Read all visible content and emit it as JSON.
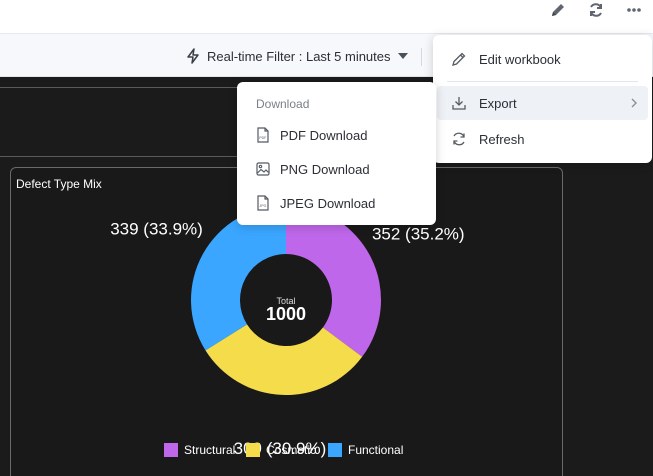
{
  "toolbar": {
    "edit_icon": "pencil-icon",
    "refresh_icon": "refresh-icon",
    "more_icon": "more-icon"
  },
  "filter": {
    "label": "Real-time Filter : Last 5 minutes"
  },
  "card": {
    "title": "Defect Type Mix"
  },
  "chart_data": {
    "type": "pie",
    "donut": true,
    "center_label": "Total",
    "center_value": "1000",
    "categories": [
      "Structural",
      "Cosmetic",
      "Functional"
    ],
    "values": [
      352,
      309,
      339
    ],
    "data_labels": [
      "352 (35.2%)",
      "309 (30.9%)",
      "339 (33.9%)"
    ],
    "colors": [
      "#bf67ea",
      "#f5dc4a",
      "#3aa6ff"
    ],
    "legend_position": "bottom"
  },
  "menu": {
    "edit": "Edit workbook",
    "export": "Export",
    "refresh": "Refresh"
  },
  "export_menu": {
    "heading": "Download",
    "pdf": "PDF Download",
    "png": "PNG Download",
    "jpeg": "JPEG Download"
  }
}
